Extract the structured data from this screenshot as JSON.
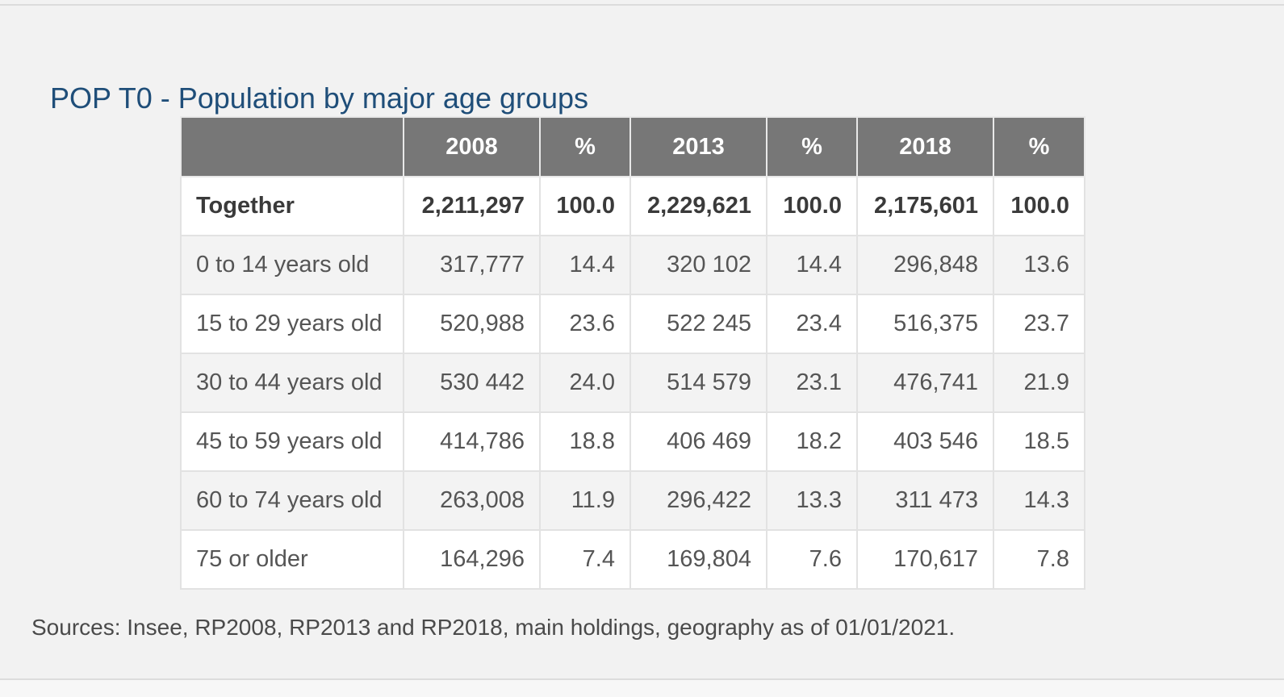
{
  "title": "POP T0 - Population by major age groups",
  "table": {
    "columns": [
      "",
      "2008",
      "%",
      "2013",
      "%",
      "2018",
      "%"
    ],
    "rows": [
      {
        "label": "Together",
        "values": [
          "2,211,297",
          "100.0",
          "2,229,621",
          "100.0",
          "2,175,601",
          "100.0"
        ]
      },
      {
        "label": "0 to 14 years old",
        "values": [
          "317,777",
          "14.4",
          "320 102",
          "14.4",
          "296,848",
          "13.6"
        ]
      },
      {
        "label": "15 to 29 years old",
        "values": [
          "520,988",
          "23.6",
          "522 245",
          "23.4",
          "516,375",
          "23.7"
        ]
      },
      {
        "label": "30 to 44 years old",
        "values": [
          "530 442",
          "24.0",
          "514 579",
          "23.1",
          "476,741",
          "21.9"
        ]
      },
      {
        "label": "45 to 59 years old",
        "values": [
          "414,786",
          "18.8",
          "406 469",
          "18.2",
          "403 546",
          "18.5"
        ]
      },
      {
        "label": "60 to 74 years old",
        "values": [
          "263,008",
          "11.9",
          "296,422",
          "13.3",
          "311 473",
          "14.3"
        ]
      },
      {
        "label": "75 or older",
        "values": [
          "164,296",
          "7.4",
          "169,804",
          "7.6",
          "170,617",
          "7.8"
        ]
      }
    ]
  },
  "sources": "Sources: Insee, RP2008, RP2013 and RP2018, main holdings, geography as of 01/01/2021."
}
